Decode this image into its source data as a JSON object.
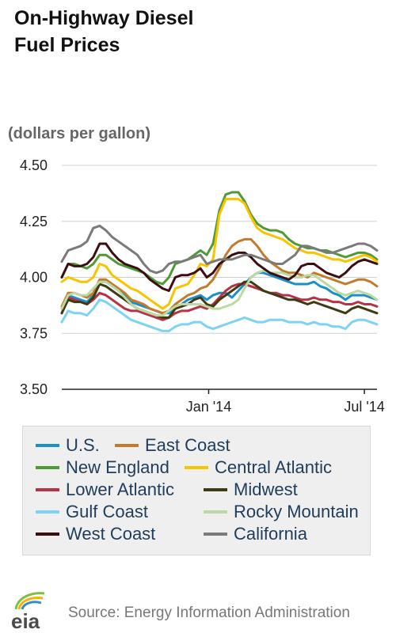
{
  "header": {
    "title_line1": "On-Highway Diesel",
    "title_line2": "Fuel Prices",
    "units": "(dollars per gallon)"
  },
  "footer": {
    "logo_text": "eia",
    "source": "Source: Energy Information Administration"
  },
  "chart_data": {
    "type": "line",
    "title": "On-Highway Diesel Fuel Prices",
    "ylabel": "(dollars per gallon)",
    "ylim": [
      3.5,
      4.5
    ],
    "yticks": [
      3.5,
      3.75,
      4.0,
      4.25,
      4.5
    ],
    "ytick_labels": [
      "3.50",
      "3.75",
      "4.00",
      "4.25",
      "4.50"
    ],
    "x_labels": [
      "Jan '14",
      "Jul '14"
    ],
    "x_label_weeks": [
      23.3,
      48
    ],
    "x_weeks": [
      0,
      1,
      2,
      3,
      4,
      5,
      6,
      7,
      8,
      9,
      10,
      11,
      12,
      13,
      14,
      15,
      16,
      17,
      18,
      19,
      20,
      21,
      22,
      23,
      24,
      25,
      26,
      27,
      28,
      29,
      30,
      31,
      32,
      33,
      34,
      35,
      36,
      37,
      38,
      39,
      40,
      41,
      42,
      43,
      44,
      45,
      46,
      47,
      48,
      49,
      50
    ],
    "grid": true,
    "legend_position": "bottom",
    "series": [
      {
        "name": "U.S.",
        "color": "#1a8fc9",
        "values": [
          3.86,
          3.92,
          3.91,
          3.9,
          3.89,
          3.92,
          3.98,
          3.98,
          3.96,
          3.94,
          3.92,
          3.89,
          3.88,
          3.87,
          3.86,
          3.85,
          3.84,
          3.84,
          3.87,
          3.88,
          3.9,
          3.91,
          3.92,
          3.9,
          3.92,
          3.93,
          3.93,
          3.91,
          3.94,
          3.97,
          4.0,
          4.02,
          4.02,
          4.01,
          4.0,
          3.99,
          3.98,
          3.97,
          3.97,
          3.97,
          3.98,
          3.96,
          3.95,
          3.93,
          3.92,
          3.9,
          3.92,
          3.92,
          3.92,
          3.91,
          3.9
        ]
      },
      {
        "name": "East Coast",
        "color": "#c47a2b",
        "values": [
          3.87,
          3.93,
          3.93,
          3.92,
          3.91,
          3.93,
          3.99,
          3.99,
          3.97,
          3.95,
          3.93,
          3.9,
          3.89,
          3.88,
          3.86,
          3.85,
          3.84,
          3.85,
          3.88,
          3.9,
          3.92,
          3.93,
          3.95,
          3.96,
          3.99,
          4.04,
          4.1,
          4.14,
          4.16,
          4.17,
          4.17,
          4.14,
          4.1,
          4.07,
          4.05,
          4.03,
          4.02,
          4.02,
          4.01,
          4.0,
          4.02,
          4.01,
          4.0,
          3.99,
          3.98,
          3.97,
          3.98,
          3.99,
          3.99,
          3.98,
          3.96
        ]
      },
      {
        "name": "New England",
        "color": "#4f9a36",
        "values": [
          4.0,
          4.06,
          4.06,
          4.05,
          4.04,
          4.06,
          4.1,
          4.1,
          4.08,
          4.06,
          4.05,
          4.04,
          4.03,
          4.02,
          4.0,
          3.98,
          3.97,
          4.0,
          4.06,
          4.07,
          4.08,
          4.1,
          4.12,
          4.1,
          4.15,
          4.3,
          4.37,
          4.38,
          4.38,
          4.34,
          4.28,
          4.24,
          4.22,
          4.21,
          4.21,
          4.2,
          4.17,
          4.15,
          4.14,
          4.13,
          4.13,
          4.12,
          4.12,
          4.11,
          4.1,
          4.09,
          4.1,
          4.11,
          4.11,
          4.1,
          4.08
        ]
      },
      {
        "name": "Central Atlantic",
        "color": "#f7c400",
        "values": [
          3.98,
          4.0,
          3.99,
          3.98,
          3.98,
          4.0,
          4.06,
          4.05,
          4.01,
          3.99,
          3.97,
          3.95,
          3.94,
          3.92,
          3.9,
          3.88,
          3.86,
          3.88,
          3.95,
          3.96,
          3.97,
          4.01,
          4.06,
          4.05,
          4.08,
          4.28,
          4.35,
          4.35,
          4.35,
          4.33,
          4.27,
          4.22,
          4.2,
          4.19,
          4.18,
          4.17,
          4.15,
          4.13,
          4.12,
          4.11,
          4.11,
          4.1,
          4.09,
          4.08,
          4.08,
          4.07,
          4.08,
          4.09,
          4.1,
          4.09,
          4.07
        ]
      },
      {
        "name": "Lower Atlantic",
        "color": "#b83245",
        "values": [
          3.84,
          3.91,
          3.9,
          3.89,
          3.88,
          3.9,
          3.93,
          3.92,
          3.9,
          3.88,
          3.86,
          3.85,
          3.85,
          3.84,
          3.83,
          3.82,
          3.81,
          3.82,
          3.84,
          3.85,
          3.85,
          3.86,
          3.87,
          3.86,
          3.88,
          3.91,
          3.94,
          3.96,
          3.97,
          3.97,
          3.96,
          3.95,
          3.94,
          3.93,
          3.93,
          3.92,
          3.92,
          3.91,
          3.9,
          3.9,
          3.91,
          3.9,
          3.9,
          3.89,
          3.89,
          3.88,
          3.88,
          3.89,
          3.88,
          3.88,
          3.87
        ]
      },
      {
        "name": "Midwest",
        "color": "#3f3a14",
        "values": [
          3.84,
          3.9,
          3.89,
          3.89,
          3.88,
          3.91,
          3.97,
          3.96,
          3.94,
          3.92,
          3.9,
          3.88,
          3.86,
          3.85,
          3.84,
          3.83,
          3.82,
          3.82,
          3.86,
          3.87,
          3.88,
          3.9,
          3.91,
          3.88,
          3.87,
          3.9,
          3.92,
          3.94,
          3.96,
          3.98,
          3.98,
          3.96,
          3.94,
          3.93,
          3.92,
          3.91,
          3.9,
          3.9,
          3.89,
          3.88,
          3.89,
          3.88,
          3.87,
          3.86,
          3.85,
          3.84,
          3.86,
          3.87,
          3.86,
          3.85,
          3.84
        ]
      },
      {
        "name": "Gulf Coast",
        "color": "#7dd2f5",
        "values": [
          3.8,
          3.85,
          3.84,
          3.84,
          3.83,
          3.86,
          3.9,
          3.89,
          3.87,
          3.85,
          3.83,
          3.81,
          3.8,
          3.79,
          3.78,
          3.77,
          3.76,
          3.76,
          3.78,
          3.79,
          3.79,
          3.8,
          3.8,
          3.78,
          3.77,
          3.78,
          3.79,
          3.8,
          3.81,
          3.82,
          3.81,
          3.8,
          3.8,
          3.81,
          3.81,
          3.81,
          3.8,
          3.8,
          3.8,
          3.79,
          3.8,
          3.79,
          3.79,
          3.78,
          3.78,
          3.77,
          3.8,
          3.81,
          3.81,
          3.8,
          3.79
        ]
      },
      {
        "name": "Rocky Mountain",
        "color": "#bcd9a3",
        "values": [
          3.86,
          3.92,
          3.93,
          3.92,
          3.92,
          3.95,
          3.98,
          3.98,
          3.96,
          3.94,
          3.91,
          3.88,
          3.86,
          3.85,
          3.84,
          3.83,
          3.83,
          3.85,
          3.87,
          3.88,
          3.88,
          3.88,
          3.88,
          3.87,
          3.86,
          3.86,
          3.87,
          3.88,
          3.9,
          3.95,
          4.0,
          4.02,
          4.03,
          4.02,
          4.02,
          4.02,
          4.01,
          4.0,
          4.0,
          4.01,
          4.01,
          3.99,
          3.97,
          3.95,
          3.93,
          3.92,
          3.93,
          3.94,
          3.93,
          3.92,
          3.9
        ]
      },
      {
        "name": "West Coast",
        "color": "#3b0f12",
        "values": [
          4.0,
          4.06,
          4.05,
          4.05,
          4.06,
          4.09,
          4.15,
          4.15,
          4.11,
          4.08,
          4.06,
          4.05,
          4.04,
          4.02,
          3.99,
          3.97,
          3.95,
          3.94,
          4.0,
          4.01,
          4.01,
          4.02,
          4.04,
          4.0,
          4.02,
          4.06,
          4.08,
          4.1,
          4.11,
          4.11,
          4.09,
          4.06,
          4.04,
          4.02,
          4.01,
          4.0,
          3.99,
          4.01,
          4.05,
          4.06,
          4.06,
          4.04,
          4.02,
          4.01,
          4.0,
          4.02,
          4.05,
          4.07,
          4.08,
          4.07,
          4.06
        ]
      },
      {
        "name": "California",
        "color": "#7a7a7a",
        "values": [
          4.07,
          4.12,
          4.13,
          4.14,
          4.16,
          4.22,
          4.23,
          4.21,
          4.18,
          4.16,
          4.14,
          4.12,
          4.1,
          4.06,
          4.03,
          4.02,
          4.03,
          4.06,
          4.07,
          4.07,
          4.08,
          4.09,
          4.1,
          4.06,
          4.07,
          4.08,
          4.08,
          4.08,
          4.09,
          4.1,
          4.1,
          4.09,
          4.08,
          4.07,
          4.06,
          4.06,
          4.08,
          4.1,
          4.14,
          4.14,
          4.13,
          4.12,
          4.11,
          4.11,
          4.12,
          4.13,
          4.14,
          4.15,
          4.15,
          4.14,
          4.12
        ]
      }
    ]
  }
}
